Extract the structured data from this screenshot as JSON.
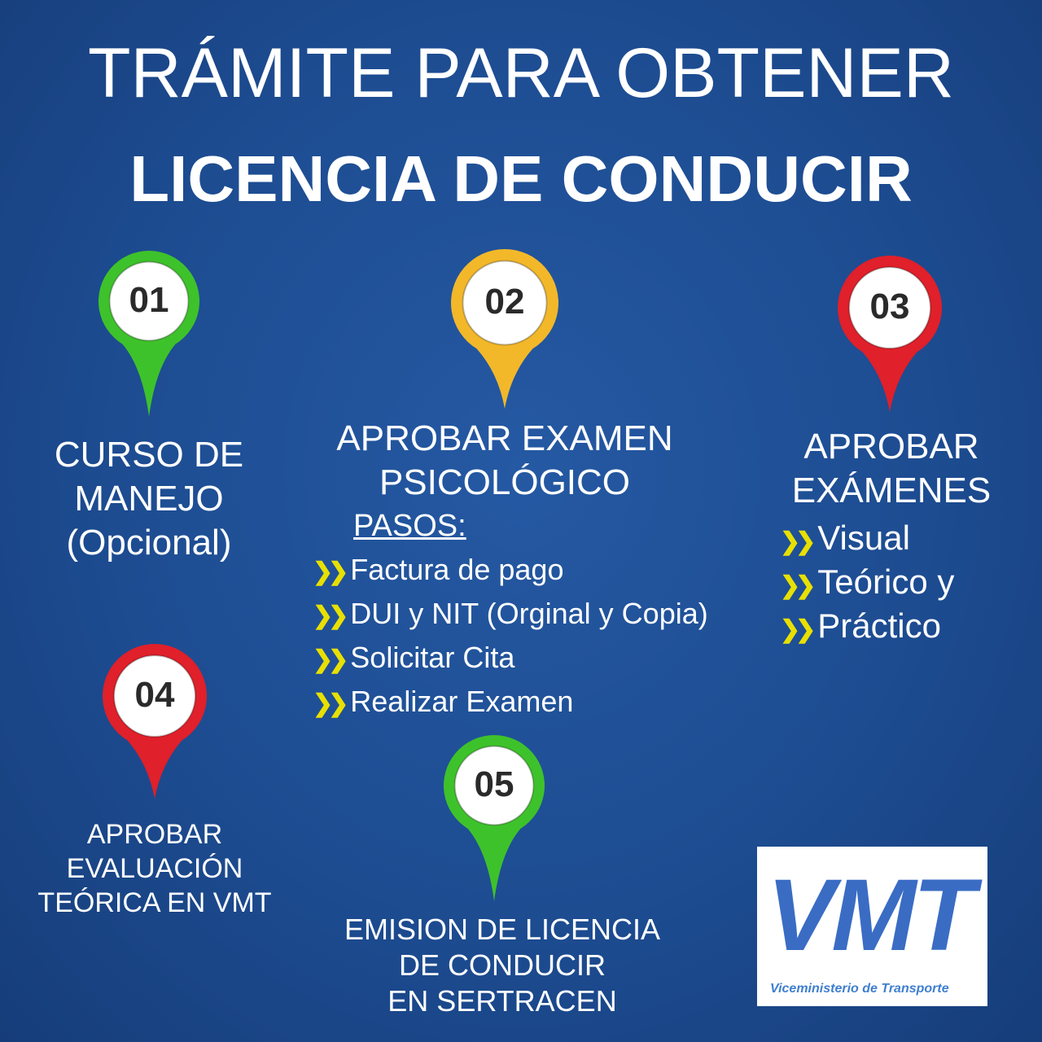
{
  "title": {
    "line1": "TRÁMITE PARA OBTENER",
    "line2": "LICENCIA DE CONDUCIR"
  },
  "colors": {
    "background": "#1d4c91",
    "green": "#3ec22b",
    "yellow": "#f2b82a",
    "red": "#e0202a",
    "chevron": "#e8e000"
  },
  "steps": [
    {
      "number": "01",
      "color": "green",
      "lines": [
        "CURSO DE",
        "MANEJO",
        "(Opcional)"
      ]
    },
    {
      "number": "02",
      "color": "yellow",
      "lines": [
        "APROBAR EXAMEN",
        "PSICOLÓGICO"
      ],
      "sub_heading": "PASOS:",
      "items": [
        "Factura de pago",
        "DUI y NIT (Orginal y Copia)",
        "Solicitar Cita",
        "Realizar Examen"
      ]
    },
    {
      "number": "03",
      "color": "red",
      "lines": [
        "APROBAR",
        "EXÁMENES"
      ],
      "items": [
        "Visual",
        "Teórico y",
        "Práctico"
      ]
    },
    {
      "number": "04",
      "color": "red",
      "lines": [
        "APROBAR",
        "EVALUACIÓN",
        "TEÓRICA EN VMT"
      ]
    },
    {
      "number": "05",
      "color": "green",
      "lines": [
        "EMISION DE LICENCIA",
        "DE CONDUCIR",
        "EN SERTRACEN"
      ]
    }
  ],
  "bullet_icon": "double-chevron-right-icon",
  "logo": {
    "acronym": "VMT",
    "name": "Viceministerio de Transporte"
  }
}
